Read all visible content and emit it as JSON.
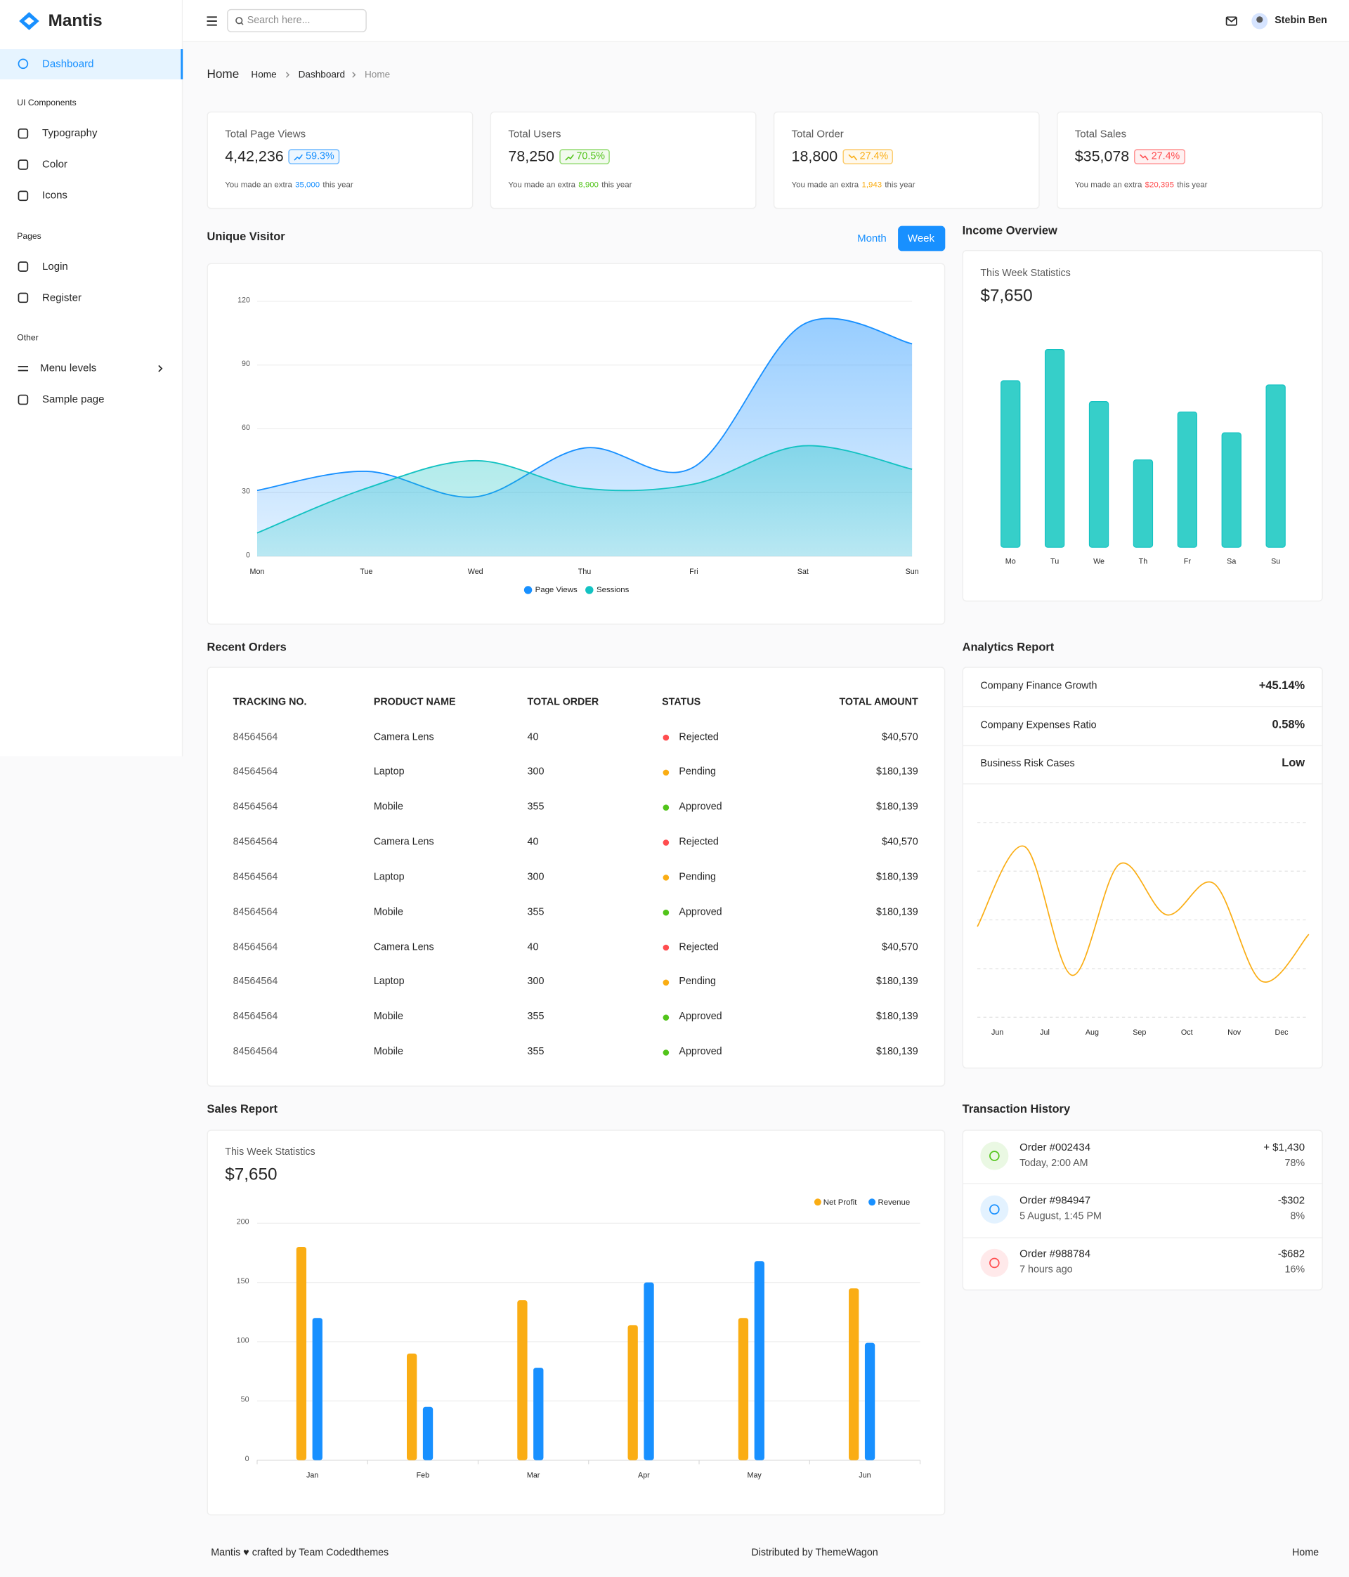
{
  "sidebar": {
    "brand": "Mantis",
    "dashboard": "Dashboard",
    "groups": [
      {
        "caption": "UI Components",
        "items": [
          "Typography",
          "Color",
          "Icons"
        ]
      },
      {
        "caption": "Pages",
        "items": [
          "Login",
          "Register"
        ]
      },
      {
        "caption": "Other",
        "items": [
          "Menu levels",
          "Sample page"
        ]
      }
    ]
  },
  "header": {
    "search_placeholder": "Search here...",
    "user": "Stebin Ben"
  },
  "breadcrumb": {
    "title": "Home",
    "trail": [
      "Home",
      "Dashboard",
      "Home"
    ]
  },
  "stats": [
    {
      "title": "Total Page Views",
      "value": "4,42,236",
      "change": "59.3%",
      "trend": "up",
      "color": "#1890ff",
      "note_prefix": "You made an extra",
      "note_amount": "35,000",
      "note_suffix": "this year"
    },
    {
      "title": "Total Users",
      "value": "78,250",
      "change": "70.5%",
      "trend": "up",
      "color": "#52c41a",
      "note_prefix": "You made an extra",
      "note_amount": "8,900",
      "note_suffix": "this year"
    },
    {
      "title": "Total Order",
      "value": "18,800",
      "change": "27.4%",
      "trend": "down",
      "color": "#faad14",
      "note_prefix": "You made an extra",
      "note_amount": "1,943",
      "note_suffix": "this year"
    },
    {
      "title": "Total Sales",
      "value": "$35,078",
      "change": "27.4%",
      "trend": "down",
      "color": "#ff4d4f",
      "note_prefix": "You made an extra",
      "note_amount": "$20,395",
      "note_suffix": "this year"
    }
  ],
  "chart_data": [
    {
      "type": "area",
      "title": "Unique Visitor",
      "toggles": [
        "Month",
        "Week"
      ],
      "active_toggle": "Week",
      "categories": [
        "Mon",
        "Tue",
        "Wed",
        "Thu",
        "Fri",
        "Sat",
        "Sun"
      ],
      "series": [
        {
          "name": "Page Views",
          "color": "#1890ff",
          "values": [
            31,
            40,
            28,
            51,
            42,
            109,
            100
          ]
        },
        {
          "name": "Sessions",
          "color": "#13c2c2",
          "values": [
            11,
            32,
            45,
            32,
            34,
            52,
            41
          ]
        }
      ],
      "ylim": [
        0,
        120
      ],
      "yticks": [
        0,
        30,
        60,
        90,
        120
      ],
      "grid": true,
      "legend": "bottom"
    },
    {
      "type": "bar",
      "title": "Income Overview",
      "subtitle": "This Week Statistics",
      "total": "$7,650",
      "categories": [
        "Mo",
        "Tu",
        "We",
        "Th",
        "Fr",
        "Sa",
        "Su"
      ],
      "values": [
        80,
        95,
        70,
        42,
        65,
        55,
        78
      ],
      "color": "#36cfc9"
    },
    {
      "type": "line",
      "title": "Analytics Report",
      "metrics": [
        {
          "label": "Company Finance Growth",
          "value": "+45.14%"
        },
        {
          "label": "Company Expenses Ratio",
          "value": "0.58%"
        },
        {
          "label": "Business Risk Cases",
          "value": "Low"
        }
      ],
      "categories": [
        "Jun",
        "Jul",
        "Aug",
        "Sep",
        "Oct",
        "Nov",
        "Dec",
        null
      ],
      "values": [
        47,
        88,
        22,
        79,
        53,
        69,
        19,
        43
      ],
      "color": "#faad14",
      "grid": true
    },
    {
      "type": "grouped-bar",
      "title": "Sales Report",
      "subtitle": "This Week Statistics",
      "total": "$7,650",
      "categories": [
        "Jan",
        "Feb",
        "Mar",
        "Apr",
        "May",
        "Jun"
      ],
      "series": [
        {
          "name": "Net Profit",
          "color": "#faad14",
          "values": [
            180,
            90,
            135,
            114,
            120,
            145
          ]
        },
        {
          "name": "Revenue",
          "color": "#1890ff",
          "values": [
            120,
            45,
            78,
            150,
            168,
            99
          ]
        }
      ],
      "ylim": [
        0,
        200
      ],
      "yticks": [
        0,
        50,
        100,
        150,
        200
      ],
      "grid": true,
      "legend": "top-right"
    }
  ],
  "orders": {
    "title": "Recent Orders",
    "columns": [
      "TRACKING NO.",
      "PRODUCT NAME",
      "TOTAL ORDER",
      "STATUS",
      "TOTAL AMOUNT"
    ],
    "status_colors": {
      "Rejected": "#ff4d4f",
      "Pending": "#faad14",
      "Approved": "#52c41a"
    },
    "rows": [
      [
        "84564564",
        "Camera Lens",
        "40",
        "Rejected",
        "$40,570"
      ],
      [
        "84564564",
        "Laptop",
        "300",
        "Pending",
        "$180,139"
      ],
      [
        "84564564",
        "Mobile",
        "355",
        "Approved",
        "$180,139"
      ],
      [
        "84564564",
        "Camera Lens",
        "40",
        "Rejected",
        "$40,570"
      ],
      [
        "84564564",
        "Laptop",
        "300",
        "Pending",
        "$180,139"
      ],
      [
        "84564564",
        "Mobile",
        "355",
        "Approved",
        "$180,139"
      ],
      [
        "84564564",
        "Camera Lens",
        "40",
        "Rejected",
        "$40,570"
      ],
      [
        "84564564",
        "Laptop",
        "300",
        "Pending",
        "$180,139"
      ],
      [
        "84564564",
        "Mobile",
        "355",
        "Approved",
        "$180,139"
      ],
      [
        "84564564",
        "Mobile",
        "355",
        "Approved",
        "$180,139"
      ]
    ]
  },
  "transactions": {
    "title": "Transaction History",
    "items": [
      {
        "title": "Order #002434",
        "time": "Today, 2:00 AM",
        "amount": "+ $1,430",
        "percent": "78%",
        "color": "#52c41a"
      },
      {
        "title": "Order #984947",
        "time": "5 August, 1:45 PM",
        "amount": "-$302",
        "percent": "8%",
        "color": "#1890ff"
      },
      {
        "title": "Order #988784",
        "time": "7 hours ago",
        "amount": "-$682",
        "percent": "16%",
        "color": "#ff4d4f"
      }
    ]
  },
  "footer": {
    "left": "Mantis ♥ crafted by Team Codedthemes",
    "center": "Distributed by ThemeWagon",
    "right": "Home"
  }
}
